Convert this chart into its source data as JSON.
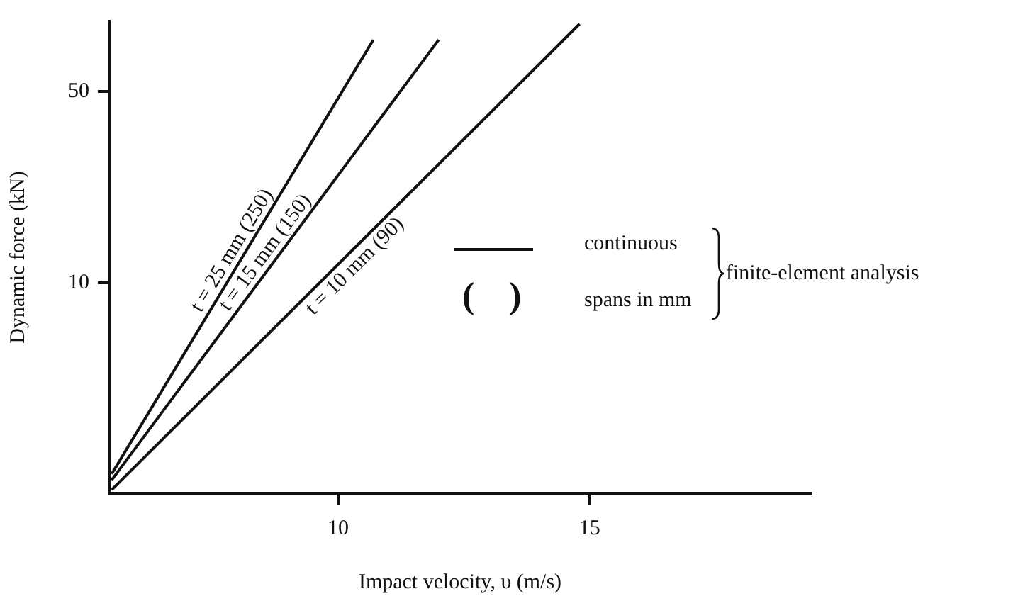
{
  "chart_data": {
    "type": "line",
    "xlabel": "Impact velocity, υ (m/s)",
    "ylabel": "Dynamic force (kN)",
    "xlim": [
      5.45,
      19.4
    ],
    "xticks": [
      10,
      15
    ],
    "ylim": [
      1.7,
      90
    ],
    "yticks": [
      10,
      50
    ],
    "log": "y",
    "grid": false,
    "legend": false,
    "marker": "none",
    "line_style": "solid",
    "series": [
      {
        "name": "t = 25 mm (250)",
        "color": "#111111",
        "x": [
          5.5,
          10.7
        ],
        "values": [
          2.0,
          77
        ]
      },
      {
        "name": "t = 15 mm (150)",
        "color": "#111111",
        "x": [
          5.5,
          12.0
        ],
        "values": [
          1.9,
          77
        ]
      },
      {
        "name": "t = 10 mm (90)",
        "color": "#111111",
        "x": [
          5.5,
          14.8
        ],
        "values": [
          1.75,
          88
        ]
      }
    ],
    "annotations": [
      "continuous",
      "( )",
      "spans in mm",
      "finite-element analysis"
    ]
  }
}
